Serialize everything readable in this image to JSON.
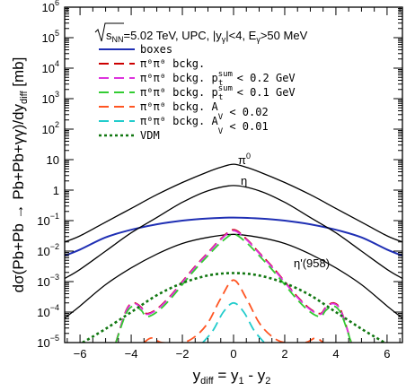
{
  "chart_data": {
    "type": "line",
    "header": {
      "sqrt": "s",
      "sqrt_sub": "NN",
      "energy": "=5.02 TeV, UPC, |y",
      "y_sub": "γ",
      "cut": "|<4, E",
      "e_sub": "γ",
      "ecut": ">50 MeV"
    },
    "ylabel": "dσ(Pb+Pb → Pb+Pb+γγ)/dy",
    "ylabel_sub": "diff",
    "ylabel_unit": " [mb]",
    "xlabel": {
      "y": "y",
      "diff": "diff",
      "eq": " = y",
      "one": "1",
      "minus": " - y",
      "two": "2"
    },
    "x_range": [
      -6.6,
      6.6
    ],
    "y_range_log10": [
      -5,
      6
    ],
    "x_ticks": [
      "−6",
      "−4",
      "−2",
      "0",
      "2",
      "4",
      "6"
    ],
    "x_tick_values": [
      -6,
      -4,
      -2,
      0,
      2,
      4,
      6
    ],
    "y_ticks": [
      {
        "base": "10",
        "exp": "−5",
        "value": -5
      },
      {
        "base": "10",
        "exp": "−4",
        "value": -4
      },
      {
        "base": "10",
        "exp": "−3",
        "value": -3
      },
      {
        "base": "10",
        "exp": "−2",
        "value": -2
      },
      {
        "base": "10",
        "exp": "−1",
        "value": -1
      },
      {
        "base": "1",
        "exp": "",
        "value": 0
      },
      {
        "base": "10",
        "exp": "",
        "value": 1
      },
      {
        "base": "10",
        "exp": "2",
        "value": 2
      },
      {
        "base": "10",
        "exp": "3",
        "value": 3
      },
      {
        "base": "10",
        "exp": "4",
        "value": 4
      },
      {
        "base": "10",
        "exp": "5",
        "value": 5
      },
      {
        "base": "10",
        "exp": "6",
        "value": 6
      }
    ],
    "legend": [
      {
        "text": "boxes",
        "color": "#1f2fb4",
        "dash": "solid"
      },
      {
        "text": "π⁰π⁰ bckg.",
        "color": "#cc0000",
        "dash": "long"
      },
      {
        "text": "π⁰π⁰ bckg. p",
        "sup": "sum",
        "sub": "t",
        "cut": " < 0.2 GeV",
        "color": "#dd33dd",
        "dash": "long"
      },
      {
        "text": "π⁰π⁰ bckg. p",
        "sup": "sum",
        "sub": "t",
        "cut": " < 0.1 GeV",
        "color": "#33cc33",
        "dash": "long"
      },
      {
        "text": "π⁰π⁰ bckg. A",
        "sub": "V",
        "cut": " < 0.02",
        "color": "#ff5522",
        "dash": "long"
      },
      {
        "text": "π⁰π⁰ bckg. A",
        "sub": "V",
        "cut": " < 0.01",
        "color": "#22cccc",
        "dash": "long"
      },
      {
        "text": "VDM",
        "color": "#117711",
        "dash": "dot"
      }
    ],
    "curve_labels": [
      {
        "text": "π",
        "sup": "0"
      },
      {
        "text": "η",
        "sup": ""
      },
      {
        "text": "η'(958)",
        "sup": ""
      }
    ],
    "series": [
      {
        "key": "boxes",
        "color": "#1f2fb4",
        "dash": "solid",
        "x": [
          -6.6,
          -6,
          -5,
          -4,
          -3,
          -2,
          -1,
          0,
          1,
          2,
          3,
          4,
          5,
          6,
          6.6
        ],
        "log10y": [
          -2.15,
          -1.95,
          -1.55,
          -1.3,
          -1.12,
          -1.0,
          -0.93,
          -0.9,
          -0.93,
          -1.0,
          -1.12,
          -1.3,
          -1.55,
          -1.95,
          -2.15
        ]
      },
      {
        "key": "pi0",
        "color": "#000000",
        "dash": "solid",
        "x": [
          -6.6,
          -6,
          -5,
          -4,
          -3,
          -2,
          -1,
          -0.5,
          0,
          0.5,
          1,
          2,
          3,
          4,
          5,
          6,
          6.6
        ],
        "log10y": [
          -1.7,
          -1.5,
          -1.05,
          -0.6,
          -0.15,
          0.25,
          0.6,
          0.75,
          0.85,
          0.75,
          0.6,
          0.25,
          -0.15,
          -0.6,
          -1.05,
          -1.5,
          -1.7
        ]
      },
      {
        "key": "eta",
        "color": "#000000",
        "dash": "solid",
        "x": [
          -6.6,
          -6,
          -5,
          -4,
          -3,
          -2,
          -1,
          0,
          1,
          2,
          3,
          4,
          5,
          6,
          6.6
        ],
        "log10y": [
          -2.9,
          -2.6,
          -2.0,
          -1.4,
          -0.9,
          -0.4,
          -0.02,
          0.15,
          -0.02,
          -0.4,
          -0.9,
          -1.4,
          -2.0,
          -2.6,
          -2.9
        ]
      },
      {
        "key": "etap",
        "color": "#000000",
        "dash": "solid",
        "x": [
          -6.6,
          -6,
          -5,
          -4,
          -3,
          -2,
          -1,
          0,
          1,
          2,
          3,
          4,
          5,
          6,
          6.6
        ],
        "log10y": [
          -4.2,
          -3.8,
          -3.1,
          -2.55,
          -2.1,
          -1.75,
          -1.55,
          -1.45,
          -1.55,
          -1.75,
          -2.1,
          -2.55,
          -3.1,
          -3.8,
          -4.2
        ]
      },
      {
        "key": "bckg",
        "color": "#cc0000",
        "dash": "long",
        "x": [
          -4.6,
          -4.2,
          -3.9,
          -3.6,
          -3.4,
          -3.0,
          -2.5,
          -2.0,
          -1.5,
          -1.0,
          -0.5,
          0,
          0.5,
          1.0,
          1.5,
          2.0,
          2.5,
          3.0,
          3.4,
          3.6,
          3.9,
          4.2,
          4.6
        ],
        "log10y": [
          -5.0,
          -3.95,
          -3.7,
          -3.85,
          -4.05,
          -3.9,
          -3.5,
          -3.0,
          -2.5,
          -2.05,
          -1.6,
          -1.3,
          -1.6,
          -2.05,
          -2.5,
          -3.0,
          -3.5,
          -3.9,
          -4.05,
          -3.85,
          -3.7,
          -3.95,
          -5.0
        ]
      },
      {
        "key": "pt02",
        "color": "#dd33dd",
        "dash": "long",
        "x": [
          -4.6,
          -4.2,
          -3.9,
          -3.6,
          -3.4,
          -3.0,
          -2.5,
          -2.0,
          -1.5,
          -1.0,
          -0.5,
          0,
          0.5,
          1.0,
          1.5,
          2.0,
          2.5,
          3.0,
          3.4,
          3.6,
          3.9,
          4.2,
          4.6
        ],
        "log10y": [
          -5.0,
          -3.97,
          -3.72,
          -3.87,
          -4.07,
          -3.92,
          -3.52,
          -3.02,
          -2.52,
          -2.07,
          -1.62,
          -1.33,
          -1.62,
          -2.07,
          -2.52,
          -3.02,
          -3.52,
          -3.92,
          -4.07,
          -3.87,
          -3.72,
          -3.97,
          -5.0
        ]
      },
      {
        "key": "pt01",
        "color": "#33cc33",
        "dash": "long",
        "x": [
          -4.6,
          -4.2,
          -3.9,
          -3.6,
          -3.4,
          -3.0,
          -2.5,
          -2.0,
          -1.5,
          -1.0,
          -0.5,
          0,
          0.5,
          1.0,
          1.5,
          2.0,
          2.5,
          3.0,
          3.4,
          3.6,
          3.9,
          4.2,
          4.6
        ],
        "log10y": [
          -5.0,
          -4.05,
          -3.8,
          -3.95,
          -4.15,
          -4.0,
          -3.6,
          -3.1,
          -2.6,
          -2.15,
          -1.72,
          -1.45,
          -1.72,
          -2.15,
          -2.6,
          -3.1,
          -3.6,
          -4.0,
          -4.15,
          -3.95,
          -3.8,
          -4.05,
          -5.0
        ]
      },
      {
        "key": "av002",
        "color": "#ff5522",
        "dash": "long",
        "x": [
          -3.5,
          -3.2,
          -2.8,
          -2.0,
          -1.5,
          -1.0,
          -0.5,
          0,
          0.5,
          1.0,
          1.5,
          2.0,
          2.8,
          3.2,
          3.5
        ],
        "log10y": [
          -5.0,
          -4.85,
          -5.0,
          -5.0,
          -4.8,
          -4.35,
          -3.55,
          -2.95,
          -3.55,
          -4.35,
          -4.8,
          -5.0,
          -5.0,
          -4.85,
          -5.0
        ]
      },
      {
        "key": "av001",
        "color": "#22cccc",
        "dash": "long",
        "x": [
          -1.2,
          -0.8,
          -0.4,
          0,
          0.4,
          0.8,
          1.2
        ],
        "log10y": [
          -5.0,
          -4.6,
          -4.0,
          -3.7,
          -4.0,
          -4.6,
          -5.0
        ]
      },
      {
        "key": "vdm",
        "color": "#117711",
        "dash": "dot",
        "x": [
          -5.9,
          -5,
          -4,
          -3,
          -2,
          -1,
          0,
          1,
          2,
          3,
          4,
          5,
          5.9
        ],
        "log10y": [
          -5.0,
          -4.55,
          -4.0,
          -3.45,
          -3.05,
          -2.8,
          -2.72,
          -2.8,
          -3.05,
          -3.45,
          -4.0,
          -4.55,
          -5.0
        ]
      }
    ]
  }
}
